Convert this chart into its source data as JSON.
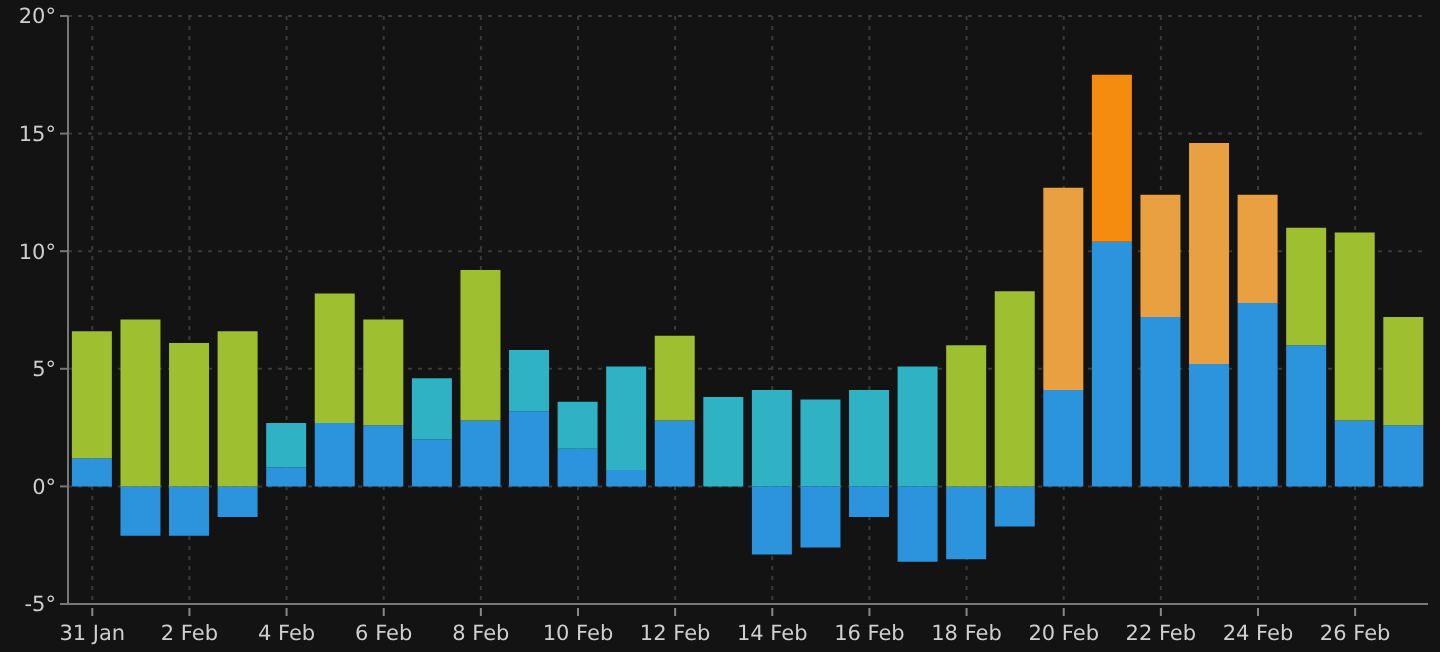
{
  "chart_data": {
    "type": "bar",
    "stacked": true,
    "grid": true,
    "categories": [
      "31 Jan",
      null,
      "2 Feb",
      null,
      "4 Feb",
      null,
      "6 Feb",
      null,
      "8 Feb",
      null,
      "10 Feb",
      null,
      "12 Feb",
      null,
      "14 Feb",
      null,
      "16 Feb",
      null,
      "18 Feb",
      null,
      "20 Feb",
      null,
      "22 Feb",
      null,
      "24 Feb",
      null,
      "26 Feb",
      null
    ],
    "ylim": [
      -5,
      20
    ],
    "yticks": [
      {
        "value": -5,
        "label": "-5°"
      },
      {
        "value": 0,
        "label": "0°"
      },
      {
        "value": 5,
        "label": "5°"
      },
      {
        "value": 10,
        "label": "10°"
      },
      {
        "value": 15,
        "label": "15°"
      },
      {
        "value": 20,
        "label": "20°"
      }
    ],
    "series": [
      {
        "color": "#2b94dd",
        "values": [
          1.2,
          -2.1,
          -2.1,
          -1.3,
          0.8,
          2.7,
          2.6,
          2.0,
          2.8,
          3.2,
          1.6,
          0.7,
          2.8,
          0,
          -2.9,
          -2.6,
          -1.3,
          -3.2,
          -3.1,
          -1.7,
          4.1,
          10.4,
          7.2,
          5.2,
          7.8,
          6.0,
          2.8,
          2.6
        ]
      },
      {
        "colors": [
          "#9dbf30",
          "#9dbf30",
          "#9dbf30",
          "#9dbf30",
          "#2fb2c4",
          "#9dbf30",
          "#9dbf30",
          "#2fb2c4",
          "#9dbf30",
          "#2fb2c4",
          "#2fb2c4",
          "#2fb2c4",
          "#9dbf30",
          "#2fb2c4",
          "#2fb2c4",
          "#2fb2c4",
          "#2fb2c4",
          "#2fb2c4",
          "#9dbf30",
          "#9dbf30",
          "#e8a040",
          "#f68c0f",
          "#e8a040",
          "#e8a040",
          "#e8a040",
          "#9dbf30",
          "#9dbf30",
          "#9dbf30"
        ],
        "values": [
          5.4,
          7.1,
          6.1,
          6.6,
          1.9,
          5.5,
          4.5,
          2.6,
          6.4,
          2.6,
          2.0,
          4.4,
          3.6,
          3.8,
          4.1,
          3.7,
          4.1,
          5.1,
          6.0,
          8.3,
          8.6,
          7.1,
          5.2,
          9.4,
          4.6,
          5.0,
          8.0,
          4.6
        ]
      }
    ]
  }
}
